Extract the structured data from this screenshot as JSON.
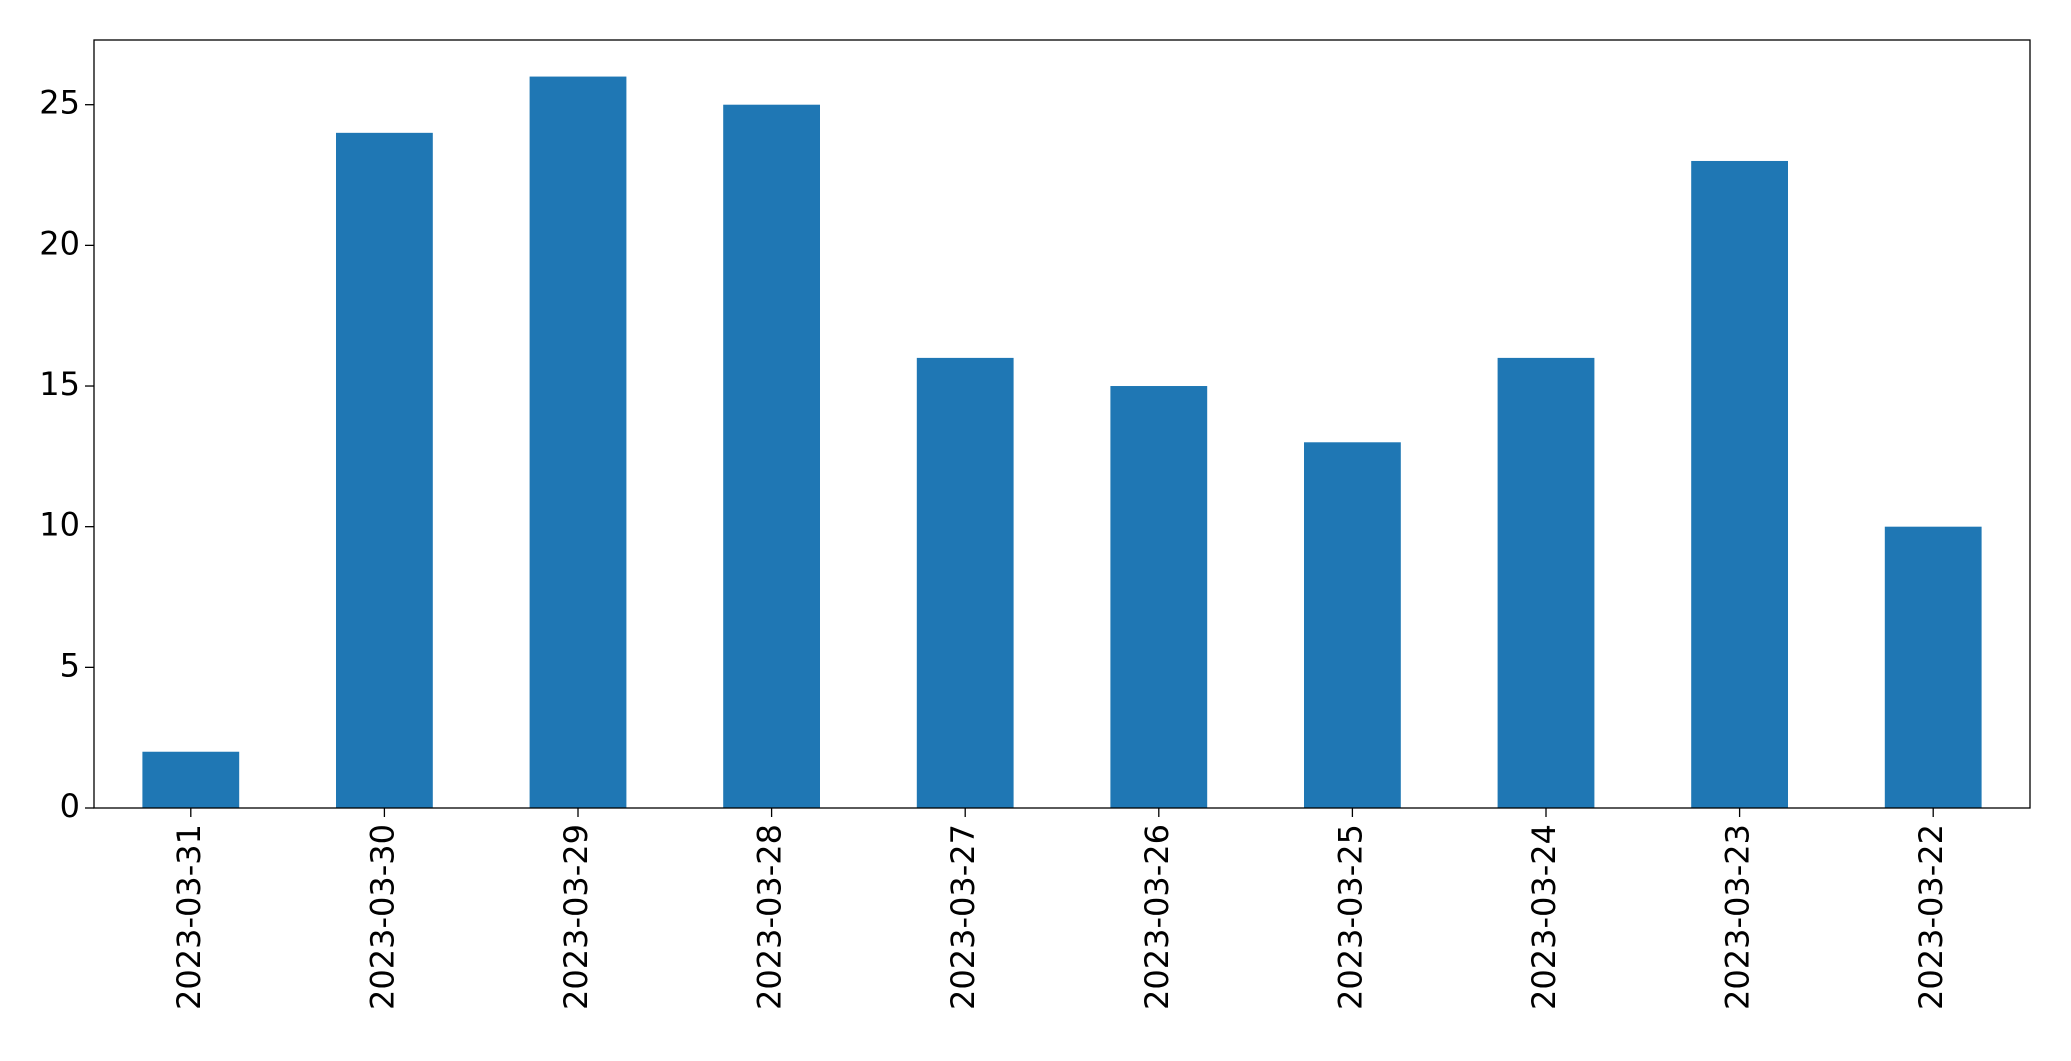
{
  "chart_data": {
    "type": "bar",
    "categories": [
      "2023-03-31",
      "2023-03-30",
      "2023-03-29",
      "2023-03-28",
      "2023-03-27",
      "2023-03-26",
      "2023-03-25",
      "2023-03-24",
      "2023-03-23",
      "2023-03-22"
    ],
    "values": [
      2,
      24,
      26,
      25,
      16,
      15,
      13,
      16,
      23,
      10
    ],
    "color": "#1f77b4",
    "ylim": [
      0,
      27.3
    ],
    "yticks": [
      0,
      5,
      10,
      15,
      20,
      25
    ],
    "grid": false
  }
}
